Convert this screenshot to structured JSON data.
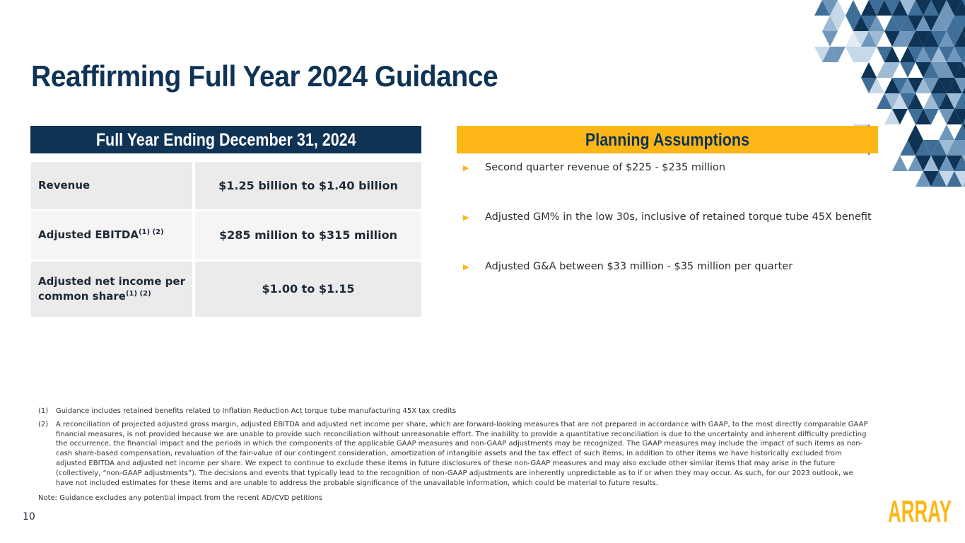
{
  "title": "Reaffirming Full Year 2024 Guidance",
  "guidance": {
    "header": "Full Year Ending December 31, 2024",
    "rows": [
      {
        "label": "Revenue",
        "sup": "",
        "value": "$1.25 billion to $1.40 billion"
      },
      {
        "label": "Adjusted EBITDA",
        "sup": "(1) (2)",
        "value": "$285 million to $315 million"
      },
      {
        "label": "Adjusted net income per common share",
        "sup": "(1) (2)",
        "value": "$1.00 to $1.15"
      }
    ]
  },
  "assumptions": {
    "header": "Planning Assumptions",
    "bullet_icon": "triangle-right-icon",
    "items": [
      "Second quarter revenue of $225 - $235 million",
      "Adjusted GM% in the low 30s, inclusive of retained torque tube 45X benefit",
      "Adjusted G&A between $33 million - $35 million per quarter"
    ]
  },
  "footnotes": [
    {
      "num": "(1)",
      "text": "Guidance includes retained benefits related to Inflation Reduction Act torque tube manufacturing 45X tax credits"
    },
    {
      "num": "(2)",
      "text": "A reconciliation of projected adjusted gross margin, adjusted EBITDA and adjusted net income per share, which are forward-looking measures that are not prepared in accordance with GAAP, to the most directly comparable GAAP financial measures, is not provided because we are unable to provide such reconciliation without unreasonable effort. The inability to provide a quantitative reconciliation is due to the uncertainty and inherent difficulty predicting the occurrence, the financial impact and the periods in which the components of the applicable GAAP measures and non-GAAP adjustments may be recognized. The GAAP measures may include the impact of such items as non-cash share-based compensation, revaluation of the fair-value of our contingent consideration, amortization of intangible assets and the tax effect of such items, in addition to other items we have historically excluded from adjusted EBITDA and adjusted net income per share. We expect to continue to exclude these items in future disclosures of these non-GAAP measures and may also exclude other similar items that may arise in the future (collectively, “non-GAAP adjustments”). The decisions and events that typically lead to the recognition of non-GAAP adjustments are inherently unpredictable as to if or when they may occur. As such, for our 2023 outlook, we have not included estimates for these items and are unable to address the probable significance of the unavailable information, which could be material to future results."
    }
  ],
  "note": "Note: Guidance excludes any potential impact from the recent AD/CVD petitions",
  "page_number": "10",
  "logo_text": "ARRAY",
  "colors": {
    "navy": "#0f3355",
    "gold": "#fcb717",
    "steel": "#3f6f99",
    "light_blue": "#c7d9e8"
  }
}
